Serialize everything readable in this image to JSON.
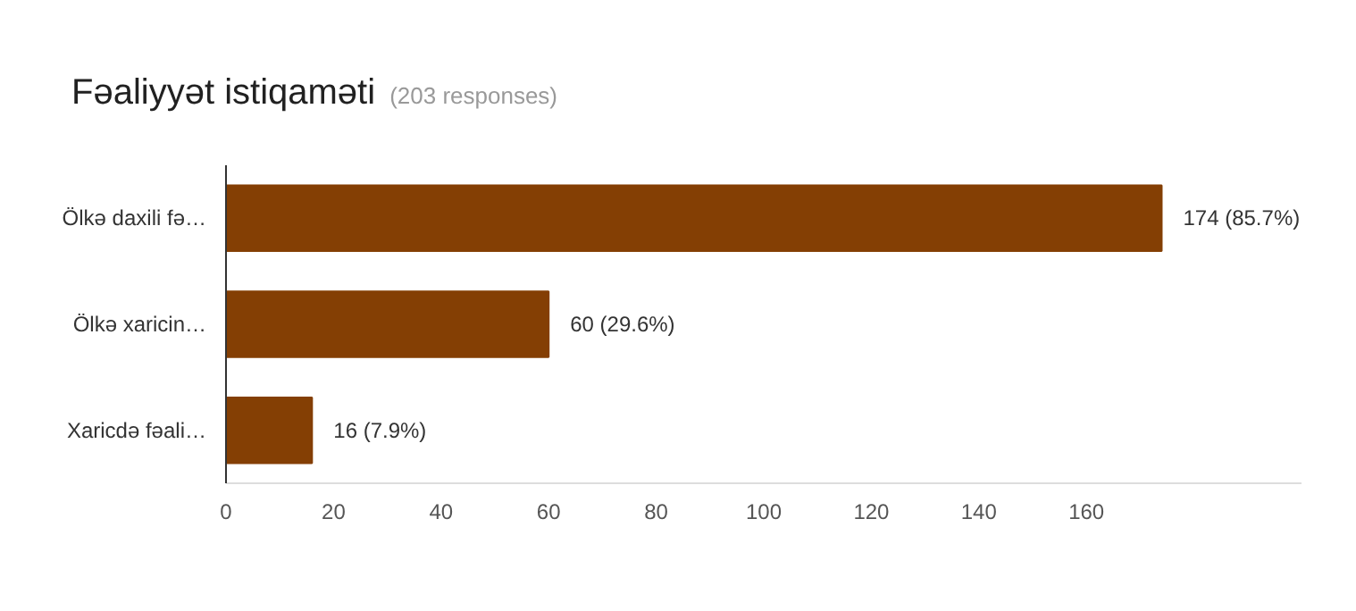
{
  "chart_data": {
    "type": "bar",
    "orientation": "horizontal",
    "title": "Fəaliyyət istiqaməti",
    "subtitle": "(203 responses)",
    "categories": [
      "Ölkə daxili fə…",
      "Ölkə xaricin…",
      "Xaricdə fəali…"
    ],
    "values": [
      174,
      60,
      16
    ],
    "color": "#843f04",
    "value_labels": [
      "174 (85.7%)",
      "60 (29.6%)",
      "16 (7.9%)"
    ],
    "xlim": [
      0,
      200
    ],
    "xticks": [
      0,
      20,
      40,
      60,
      80,
      100,
      120,
      140,
      160
    ],
    "grid": false
  }
}
